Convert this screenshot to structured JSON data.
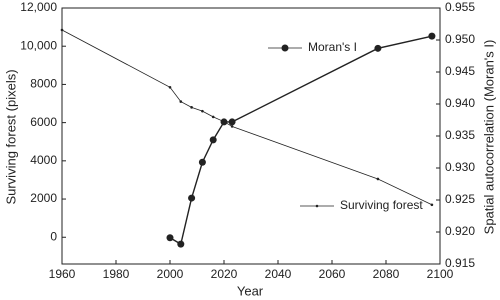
{
  "chart_data": {
    "type": "line",
    "x_label": "Year",
    "y_label": "Surviving forest (pixels)",
    "y2_label": "Spatial autocorrelation (Moran's I)",
    "xlim": [
      1960,
      2100
    ],
    "xticks": [
      1960,
      1980,
      2000,
      2020,
      2040,
      2060,
      2080,
      2100
    ],
    "ylim": [
      -1400,
      12000
    ],
    "yticks": [
      0,
      2000,
      4000,
      6000,
      8000,
      {
        "value": 10000,
        "label": "10,000"
      },
      {
        "value": 12000,
        "label": "12,000"
      }
    ],
    "y2lim": [
      0.915,
      0.955
    ],
    "y2ticks": [
      0.915,
      {
        "value": 0.92,
        "label": "0.920"
      },
      0.925,
      {
        "value": 0.93,
        "label": "0.930"
      },
      0.935,
      {
        "value": 0.94,
        "label": "0.940"
      },
      0.945,
      {
        "value": 0.95,
        "label": "0.950"
      },
      0.955
    ],
    "series": [
      {
        "name": "Surviving forest",
        "color": "#222222",
        "x": [
          1960,
          2000,
          2004,
          2008,
          2012,
          2016,
          2020,
          2023,
          2077,
          2097
        ],
        "values": [
          10850,
          7850,
          7100,
          6800,
          6600,
          6300,
          6050,
          5800,
          3050,
          1700
        ]
      },
      {
        "name": "Moran's I",
        "color": "#222222",
        "axis": "y2",
        "x": [
          2000,
          2004,
          2008,
          2012,
          2016,
          2020,
          2023,
          2077,
          2097
        ],
        "values": [
          0.9191,
          0.9181,
          0.9253,
          0.9309,
          0.9344,
          0.9372,
          0.9372,
          0.9487,
          0.9506
        ]
      }
    ]
  }
}
